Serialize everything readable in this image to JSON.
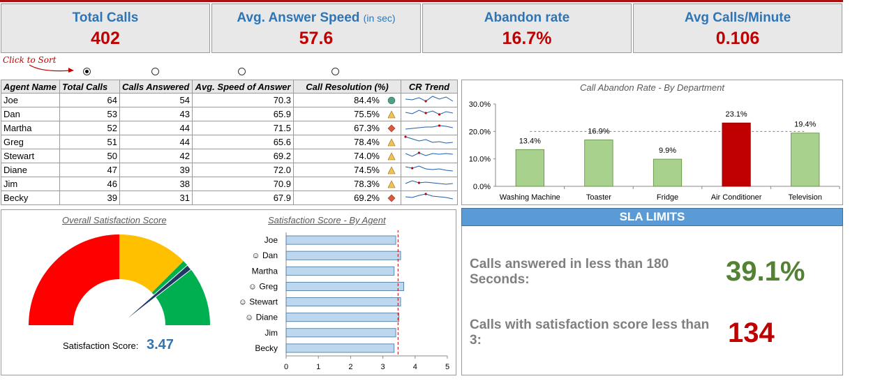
{
  "kpis": [
    {
      "label": "Total Calls",
      "sub": "",
      "value": "402"
    },
    {
      "label": "Avg. Answer Speed",
      "sub": "(in sec)",
      "value": "57.6"
    },
    {
      "label": "Abandon rate",
      "sub": "",
      "value": "16.7%"
    },
    {
      "label": "Avg Calls/Minute",
      "sub": "",
      "value": "0.106"
    }
  ],
  "sort": {
    "hint": "Click to Sort",
    "selected_column": "Total Calls"
  },
  "table": {
    "headers": [
      "Agent Name",
      "Total Calls",
      "Calls Answered",
      "Avg. Speed of Answer",
      "Call Resolution (%)",
      "CR Trend"
    ],
    "rows": [
      {
        "agent": "Joe",
        "total": "64",
        "answered": "54",
        "speed": "70.3",
        "resolution": "84.4%",
        "status": "good"
      },
      {
        "agent": "Dan",
        "total": "53",
        "answered": "43",
        "speed": "65.9",
        "resolution": "75.5%",
        "status": "warning"
      },
      {
        "agent": "Martha",
        "total": "52",
        "answered": "44",
        "speed": "71.5",
        "resolution": "67.3%",
        "status": "bad"
      },
      {
        "agent": "Greg",
        "total": "51",
        "answered": "44",
        "speed": "65.6",
        "resolution": "78.4%",
        "status": "warning"
      },
      {
        "agent": "Stewart",
        "total": "50",
        "answered": "42",
        "speed": "69.2",
        "resolution": "74.0%",
        "status": "warning"
      },
      {
        "agent": "Diane",
        "total": "47",
        "answered": "39",
        "speed": "72.0",
        "resolution": "74.5%",
        "status": "warning"
      },
      {
        "agent": "Jim",
        "total": "46",
        "answered": "38",
        "speed": "70.9",
        "resolution": "78.3%",
        "status": "warning"
      },
      {
        "agent": "Becky",
        "total": "39",
        "answered": "31",
        "speed": "67.9",
        "resolution": "69.2%",
        "status": "bad"
      }
    ]
  },
  "status_colors": {
    "good": "#4aa383",
    "warning": "#f2c057",
    "bad": "#e0583b"
  },
  "sparkline_color": "#1f5fa8",
  "sparkline_marker_color": "#c00000",
  "chart_data": [
    {
      "type": "bar",
      "title": "Call Abandon Rate - By Department",
      "categories": [
        "Washing Machine",
        "Toaster",
        "Fridge",
        "Air Conditioner",
        "Television"
      ],
      "values": [
        13.4,
        16.9,
        9.9,
        23.1,
        19.4
      ],
      "value_labels": [
        "13.4%",
        "16.9%",
        "9.9%",
        "23.1%",
        "19.4%"
      ],
      "highlight_index": 3,
      "reference_value": 20.0,
      "yticks": [
        "0.0%",
        "10.0%",
        "20.0%",
        "30.0%"
      ],
      "ylim": [
        0,
        30
      ],
      "colors": {
        "normal": "#a9d18e",
        "highlight": "#c00000"
      }
    },
    {
      "type": "bar",
      "orientation": "horizontal",
      "title": "Satisfaction Score - By Agent",
      "categories": [
        "Joe",
        "Dan",
        "Martha",
        "Greg",
        "Stewart",
        "Diane",
        "Jim",
        "Becky"
      ],
      "smiley": [
        false,
        true,
        false,
        true,
        true,
        true,
        false,
        false
      ],
      "values": [
        3.4,
        3.55,
        3.35,
        3.65,
        3.55,
        3.5,
        3.4,
        3.35
      ],
      "reference_value": 3.47,
      "xticks": [
        "0",
        "1",
        "2",
        "3",
        "4",
        "5"
      ],
      "xlim": [
        0,
        5
      ],
      "color": "#bdd7ee"
    },
    {
      "type": "gauge",
      "title": "Overall Satisfaction Score",
      "bands": [
        {
          "from": 0,
          "to": 0.5,
          "color": "#ff0000"
        },
        {
          "from": 0.5,
          "to": 0.75,
          "color": "#ffc000"
        },
        {
          "from": 0.75,
          "to": 1.0,
          "color": "#00b050"
        }
      ],
      "needle_fraction": 0.78,
      "score_label": "Satisfaction Score:",
      "score_value": "3.47"
    }
  ],
  "sla": {
    "title": "SLA LIMITS",
    "items": [
      {
        "label": "Calls answered in less than 180 Seconds:",
        "value": "39.1%",
        "color": "#548235"
      },
      {
        "label": "Calls with satisfaction score less than 3:",
        "value": "134",
        "color": "#c00000"
      }
    ]
  }
}
